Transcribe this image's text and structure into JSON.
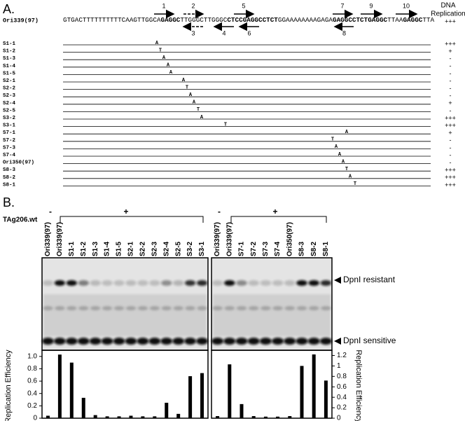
{
  "panel_a": {
    "label": "A.",
    "header": [
      "DNA",
      "Replication"
    ],
    "reference": {
      "name": "Ori339(97)",
      "sequence": [
        {
          "text": "GTGACTTTTTTTTTTCAAGTTGGCA",
          "bold": false
        },
        {
          "text": "GAGGC",
          "bold": true
        },
        {
          "text": "TTGGGCTTGGGC",
          "bold": false
        },
        {
          "text": "CTCC",
          "bold": true
        },
        {
          "text": "GAGGCCTCT",
          "bold": true
        },
        {
          "text": "GGAAAAAAAAGAGA",
          "bold": false
        },
        {
          "text": "GAGGCCTCT",
          "bold": true
        },
        {
          "text": "GAGGC",
          "bold": true
        },
        {
          "text": "TTAA",
          "bold": false
        },
        {
          "text": "GAGGC",
          "bold": true
        },
        {
          "text": "TTA",
          "bold": false
        }
      ],
      "replication": "+++"
    },
    "arrows": [
      "1",
      "2",
      "3",
      "4",
      "5",
      "6",
      "7",
      "8",
      "9",
      "10"
    ],
    "mutants": [
      {
        "name": "S1-1",
        "base": "A",
        "replication": "+++"
      },
      {
        "name": "S1-2",
        "base": "T",
        "replication": "+"
      },
      {
        "name": "S1-3",
        "base": "A",
        "replication": "-"
      },
      {
        "name": "S1-4",
        "base": "A",
        "replication": "-"
      },
      {
        "name": "S1-5",
        "base": "A",
        "replication": "-"
      },
      {
        "name": "S2-1",
        "base": "A",
        "replication": "-"
      },
      {
        "name": "S2-2",
        "base": "T",
        "replication": "-"
      },
      {
        "name": "S2-3",
        "base": "A",
        "replication": "-"
      },
      {
        "name": "S2-4",
        "base": "A",
        "replication": "+"
      },
      {
        "name": "S2-5",
        "base": "T",
        "replication": "-"
      },
      {
        "name": "S3-2",
        "base": "A",
        "replication": "+++"
      },
      {
        "name": "S3-1",
        "base": "T",
        "replication": "+++"
      },
      {
        "name": "S7-1",
        "base": "A",
        "replication": "+"
      },
      {
        "name": "S7-2",
        "base": "T",
        "replication": "-"
      },
      {
        "name": "S7-3",
        "base": "A",
        "replication": "-"
      },
      {
        "name": "S7-4",
        "base": "A",
        "replication": "-"
      },
      {
        "name": "Ori350(97)",
        "base": "A",
        "replication": "-"
      },
      {
        "name": "S8-3",
        "base": "T",
        "replication": "+++"
      },
      {
        "name": "S8-2",
        "base": "A",
        "replication": "+++"
      },
      {
        "name": "S8-1",
        "base": "T",
        "replication": "+++"
      }
    ]
  },
  "panel_b": {
    "label": "B.",
    "treatment": "TAg206.wt",
    "gels": [
      {
        "minus": "-",
        "plus": "+"
      },
      {
        "minus": "-",
        "plus": "+"
      }
    ],
    "band_labels": [
      "DpnI resistant",
      "DpnI sensitive"
    ]
  },
  "chart_data": [
    {
      "type": "bar",
      "y_label": "Replication Efficiency",
      "color": "#000000",
      "categories": [
        "Ori339(97)",
        "Ori339(97)",
        "S1-1",
        "S1-2",
        "S1-3",
        "S1-4",
        "S1-5",
        "S2-1",
        "S2-2",
        "S2-3",
        "S2-4",
        "S2-5",
        "S3-2",
        "S3-1"
      ],
      "values": [
        0.04,
        1.03,
        0.9,
        0.33,
        0.05,
        0.03,
        0.03,
        0.04,
        0.03,
        0.03,
        0.25,
        0.07,
        0.68,
        0.73
      ],
      "ylim": [
        0,
        1.1
      ],
      "yticks": [
        0,
        0.2,
        0.4,
        0.6,
        0.8,
        {
          "value": 1,
          "label": "1.0"
        }
      ],
      "axis_side": "left"
    },
    {
      "type": "bar",
      "y_label": "Replication Efficiency",
      "color": "#000000",
      "categories": [
        "Ori339(97)",
        "Ori339(97)",
        "S7-1",
        "S7-2",
        "S7-3",
        "S7-4",
        "Ori350(97)",
        "S8-3",
        "S8-2",
        "S8-1"
      ],
      "values": [
        0.04,
        1.03,
        0.27,
        0.04,
        0.03,
        0.03,
        0.04,
        1.0,
        1.22,
        0.72
      ],
      "ylim": [
        0,
        1.3
      ],
      "yticks": [
        0,
        0.2,
        0.4,
        0.6,
        0.8,
        1,
        1.2
      ],
      "axis_side": "right"
    }
  ]
}
